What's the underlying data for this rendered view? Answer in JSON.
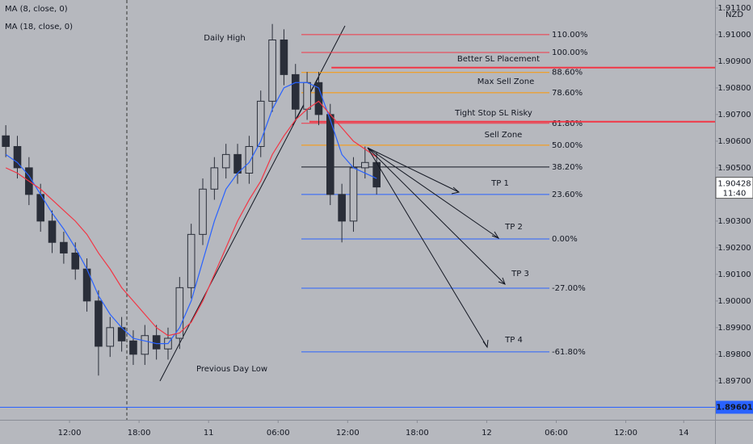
{
  "chart_data": {
    "type": "candlestick",
    "currency": "NZD",
    "countdown": "11:40",
    "xlim": [
      0,
      61.7
    ],
    "ylim": [
      1.89554,
      1.9113
    ],
    "xticks": [
      {
        "value": 6,
        "label": "12:00"
      },
      {
        "value": 12,
        "label": "18:00"
      },
      {
        "value": 18,
        "label": "11"
      },
      {
        "value": 24,
        "label": "06:00"
      },
      {
        "value": 30,
        "label": "12:00"
      },
      {
        "value": 36,
        "label": "18:00"
      },
      {
        "value": 42,
        "label": "12"
      },
      {
        "value": 48,
        "label": "06:00"
      },
      {
        "value": 54,
        "label": "12:00"
      },
      {
        "value": 59,
        "label": "14"
      }
    ],
    "yticks": [
      {
        "value": 1.911,
        "label": "1.91100"
      },
      {
        "value": 1.91,
        "label": "1.91000"
      },
      {
        "value": 1.909,
        "label": "1.90900"
      },
      {
        "value": 1.908,
        "label": "1.90800"
      },
      {
        "value": 1.907,
        "label": "1.90700"
      },
      {
        "value": 1.906,
        "label": "1.90600"
      },
      {
        "value": 1.905,
        "label": "1.90500"
      },
      {
        "value": 1.903,
        "label": "1.90300"
      },
      {
        "value": 1.902,
        "label": "1.90200"
      },
      {
        "value": 1.901,
        "label": "1.90100"
      },
      {
        "value": 1.9,
        "label": "1.90000"
      },
      {
        "value": 1.899,
        "label": "1.89900"
      },
      {
        "value": 1.898,
        "label": "1.89800"
      },
      {
        "value": 1.897,
        "label": "1.89700"
      }
    ],
    "candle_color": "#2a2e39",
    "x": [
      0.5,
      1.5,
      2.5,
      3.5,
      4.5,
      5.5,
      6.5,
      7.5,
      8.5,
      9.5,
      10.5,
      11.5,
      12.5,
      13.5,
      14.5,
      15.5,
      16.5,
      17.5,
      18.5,
      19.5,
      20.5,
      21.5,
      22.5,
      23.5,
      24.5,
      25.5,
      26.5,
      27.5,
      28.5,
      29.5,
      30.5,
      31.5,
      32.5
    ],
    "open": [
      1.9062,
      1.9058,
      1.905,
      1.904,
      1.903,
      1.9022,
      1.9018,
      1.9012,
      1.9,
      1.8983,
      1.899,
      1.8985,
      1.898,
      1.8987,
      1.8982,
      1.8986,
      1.9005,
      1.9025,
      1.9042,
      1.905,
      1.9055,
      1.9048,
      1.9058,
      1.9075,
      1.9098,
      1.9085,
      1.9072,
      1.9082,
      1.907,
      1.904,
      1.903,
      1.905,
      1.9052
    ],
    "high": [
      1.9066,
      1.9062,
      1.9054,
      1.9044,
      1.9034,
      1.9026,
      1.9022,
      1.9016,
      1.9004,
      1.8994,
      1.8994,
      1.8989,
      1.8991,
      1.8991,
      1.899,
      1.9009,
      1.9029,
      1.9046,
      1.9054,
      1.9059,
      1.9059,
      1.9062,
      1.9079,
      1.9104,
      1.9102,
      1.9089,
      1.9086,
      1.9086,
      1.9074,
      1.9044,
      1.9054,
      1.9058,
      1.9056
    ],
    "low": [
      1.9054,
      1.9046,
      1.9036,
      1.9026,
      1.9018,
      1.9014,
      1.9008,
      1.8996,
      1.8972,
      1.8979,
      1.8981,
      1.8976,
      1.8976,
      1.8978,
      1.8978,
      1.8982,
      1.9001,
      1.9021,
      1.9038,
      1.9046,
      1.9044,
      1.9044,
      1.9054,
      1.9071,
      1.9081,
      1.9068,
      1.9068,
      1.9066,
      1.9036,
      1.9022,
      1.9026,
      1.9046,
      1.904
    ],
    "close": [
      1.9058,
      1.905,
      1.904,
      1.903,
      1.9022,
      1.9018,
      1.9012,
      1.9,
      1.8983,
      1.899,
      1.8985,
      1.898,
      1.8987,
      1.8982,
      1.8986,
      1.9005,
      1.9025,
      1.9042,
      1.905,
      1.9055,
      1.9048,
      1.9058,
      1.9075,
      1.9098,
      1.9085,
      1.9072,
      1.9082,
      1.907,
      1.904,
      1.903,
      1.905,
      1.9052,
      1.90428
    ],
    "series": [
      {
        "name": "MA (8, close, 0)",
        "color": "#2962ff",
        "values": [
          1.9055,
          1.9052,
          1.9047,
          1.904,
          1.9033,
          1.9027,
          1.902,
          1.9012,
          1.9002,
          1.8995,
          1.899,
          1.8986,
          1.8985,
          1.8984,
          1.8984,
          1.899,
          1.9,
          1.9015,
          1.903,
          1.9042,
          1.9048,
          1.9052,
          1.906,
          1.9072,
          1.908,
          1.9082,
          1.9082,
          1.908,
          1.9068,
          1.9055,
          1.905,
          1.9048,
          1.9046
        ]
      },
      {
        "name": "MA (18, close, 0)",
        "color": "#f23645",
        "values": [
          1.905,
          1.9048,
          1.9045,
          1.9042,
          1.9038,
          1.9034,
          1.903,
          1.9025,
          1.9018,
          1.9012,
          1.9005,
          1.9,
          1.8995,
          1.899,
          1.8987,
          1.8988,
          1.8992,
          1.9,
          1.901,
          1.902,
          1.903,
          1.9038,
          1.9045,
          1.9055,
          1.9062,
          1.9068,
          1.9072,
          1.9075,
          1.907,
          1.9065,
          1.906,
          1.9057,
          1.9054
        ]
      }
    ],
    "fib_levels": [
      {
        "name": "110.00%",
        "price": 1.91,
        "color": "#f23645"
      },
      {
        "name": "100.00%",
        "price": 1.90933,
        "color": "#f23645"
      },
      {
        "name": "88.60%",
        "price": 1.90858,
        "color": "#ff9800"
      },
      {
        "name": "78.60%",
        "price": 1.90782,
        "color": "#ff9800"
      },
      {
        "name": "61.80%",
        "price": 1.90667,
        "color": "#f23645"
      },
      {
        "name": "50.00%",
        "price": 1.90585,
        "color": "#ff9800"
      },
      {
        "name": "38.20%",
        "price": 1.90503,
        "color": "#131722"
      },
      {
        "name": "23.60%",
        "price": 1.904,
        "color": "#2962ff"
      },
      {
        "name": "0.00%",
        "price": 1.90233,
        "color": "#2962ff"
      },
      {
        "name": "-27.00%",
        "price": 1.90048,
        "color": "#2962ff"
      },
      {
        "name": "-61.80%",
        "price": 1.89809,
        "color": "#2962ff"
      }
    ],
    "hlines": [
      {
        "price": 1.90876,
        "color": "#f23645",
        "from": 28.6
      },
      {
        "price": 1.90673,
        "color": "#f23645",
        "from": 26.7
      }
    ],
    "support": {
      "price": 1.89601,
      "color": "#2962ff"
    },
    "annotations": [
      "Daily High",
      "Better SL Placement",
      "Max Sell Zone",
      "Tight Stop SL Risky",
      "Sell Zone",
      "TP 1",
      "TP 2",
      "TP 3",
      "TP 4",
      "Previous Day Low"
    ]
  }
}
